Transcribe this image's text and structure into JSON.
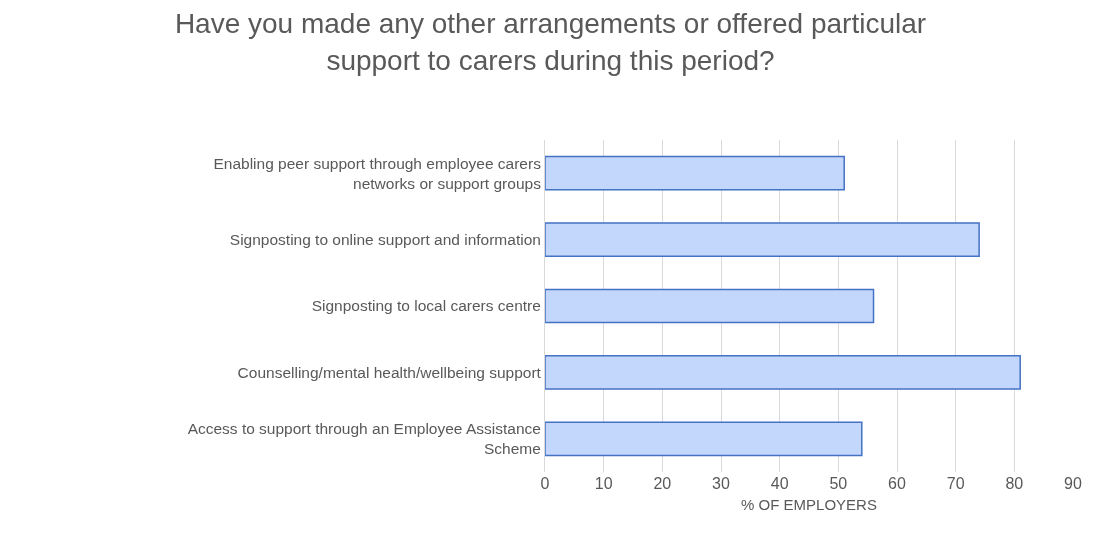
{
  "chart_data": {
    "type": "bar",
    "orientation": "horizontal",
    "title": "Have you made any other arrangements or offered particular support to carers during this period?",
    "xlabel": "% OF EMPLOYERS",
    "categories": [
      "Enabling peer support through employee carers networks or support groups",
      "Signposting to online support and information",
      "Signposting to local carers centre",
      "Counselling/mental health/wellbeing support",
      "Access to support through an Employee Assistance Scheme"
    ],
    "values": [
      51,
      74,
      56,
      81,
      54
    ],
    "color": "#c3d6fb",
    "xlim": [
      0,
      90
    ],
    "xticks": [
      0,
      10,
      20,
      30,
      40,
      50,
      60,
      70,
      80,
      90
    ],
    "grid": "x"
  }
}
